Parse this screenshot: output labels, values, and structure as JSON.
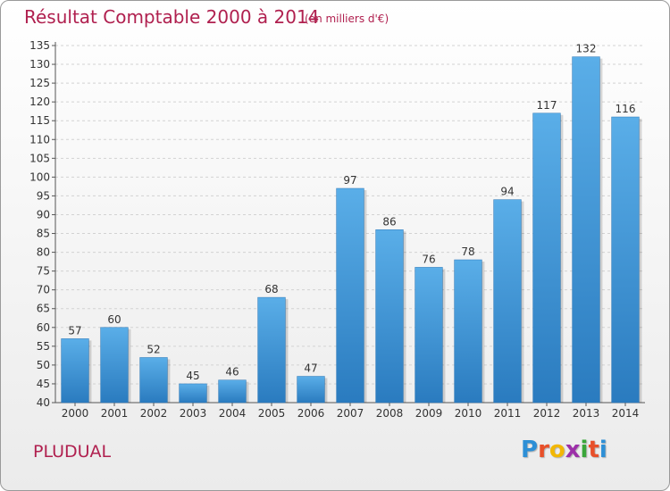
{
  "title": "Résultat Comptable 2000 à 2014",
  "subtitle": "(en milliers d'€)",
  "commune": "PLUDUAL",
  "logo": {
    "letters": [
      {
        "char": "P",
        "color": "#2d8fd6"
      },
      {
        "char": "r",
        "color": "#e8502a"
      },
      {
        "char": "o",
        "color": "#f2b705"
      },
      {
        "char": "x",
        "color": "#9c2fa8"
      },
      {
        "char": "i",
        "color": "#3aa63a"
      },
      {
        "char": "t",
        "color": "#e8502a"
      },
      {
        "char": "i",
        "color": "#2d8fd6"
      }
    ]
  },
  "chart_data": {
    "type": "bar",
    "categories": [
      "2000",
      "2001",
      "2002",
      "2003",
      "2004",
      "2005",
      "2006",
      "2007",
      "2008",
      "2009",
      "2010",
      "2011",
      "2012",
      "2013",
      "2014"
    ],
    "values": [
      57,
      60,
      52,
      45,
      46,
      68,
      47,
      97,
      86,
      76,
      78,
      94,
      117,
      132,
      116
    ],
    "ylim": [
      40,
      135
    ],
    "yticks": [
      40,
      45,
      50,
      55,
      60,
      65,
      70,
      75,
      80,
      85,
      90,
      95,
      100,
      105,
      110,
      115,
      120,
      125,
      130,
      135
    ],
    "grid": true,
    "bar_color_top": "#5aaee8",
    "bar_color_bottom": "#2a7bbf"
  }
}
